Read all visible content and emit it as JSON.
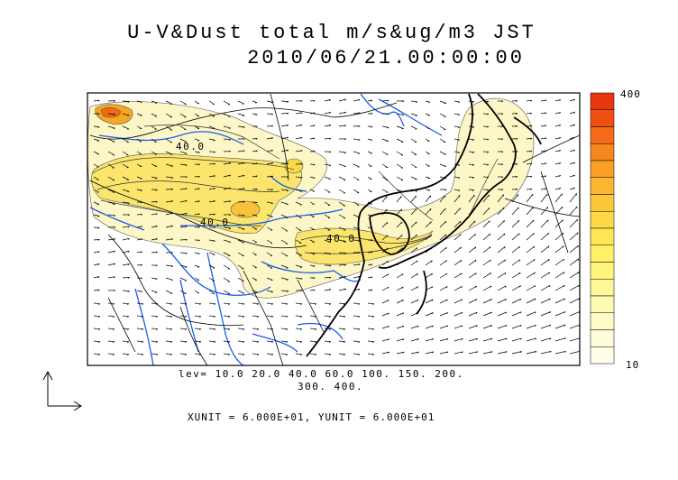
{
  "title": {
    "line1": "U-V&Dust total m/s&ug/m3 JST",
    "line2": "2010/06/21.00:00:00"
  },
  "contour_levels": {
    "line1": "lev= 10.0 20.0 40.0 60.0 100. 150. 200.",
    "line2": "300. 400."
  },
  "contour_labels": [
    "40.0",
    "40.0",
    "40.0"
  ],
  "vector_units": "XUNIT = 6.000E+01, YUNIT = 6.000E+01",
  "colorbar": {
    "max_label": "400",
    "min_label": "10",
    "colors": [
      "#e8360f",
      "#ef4f12",
      "#f46a18",
      "#f7861e",
      "#fa9f26",
      "#fbb52f",
      "#fcc83a",
      "#fdd946",
      "#fee655",
      "#fff068",
      "#fff57f",
      "#fff899",
      "#fffab2",
      "#fffcc8",
      "#fffddb",
      "#fffee9"
    ]
  },
  "colors": {
    "coast": "#000000",
    "rivers": "#1a5fe8",
    "dust_low": "#fdf6c7",
    "dust_mid": "#fbe56d",
    "dust_high": "#ef6a12"
  }
}
